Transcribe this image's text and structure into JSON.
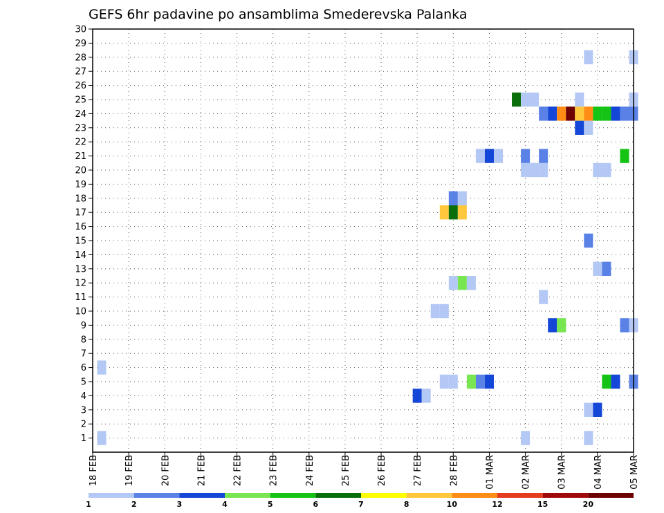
{
  "chart_data": {
    "type": "heatmap",
    "title": "GEFS 6hr padavine po ansamblima Smederevska Palanka",
    "xlabel": "",
    "ylabel": "",
    "x_ticks": [
      "18 FEB",
      "19 FEB",
      "20 FEB",
      "21 FEB",
      "22 FEB",
      "23 FEB",
      "24 FEB",
      "25 FEB",
      "26 FEB",
      "27 FEB",
      "28 FEB",
      "01 MAR",
      "02 MAR",
      "03 MAR",
      "04 MAR",
      "05 MAR"
    ],
    "x_range": [
      "18 FEB 00Z",
      "05 MAR 00Z"
    ],
    "y_ticks": [
      1,
      2,
      3,
      4,
      5,
      6,
      7,
      8,
      9,
      10,
      11,
      12,
      13,
      14,
      15,
      16,
      17,
      18,
      19,
      20,
      21,
      22,
      23,
      24,
      25,
      26,
      27,
      28,
      29,
      30
    ],
    "y_range": [
      0,
      30
    ],
    "grid": true,
    "colorbar": {
      "labels": [
        "1",
        "2",
        "3",
        "4",
        "5",
        "6",
        "7",
        "8",
        "10",
        "12",
        "15",
        "20"
      ],
      "colors": [
        "#b4c8f5",
        "#5a82e6",
        "#1446d7",
        "#78e650",
        "#14c314",
        "#0a6e0a",
        "#ffff00",
        "#ffc83c",
        "#ff8c14",
        "#e63c1e",
        "#a00a0a",
        "#6e0000"
      ]
    },
    "cells": [
      {
        "member": 1,
        "time": "18 FEB 06Z",
        "level": 1
      },
      {
        "member": 1,
        "time": "02 MAR 00Z",
        "level": 1
      },
      {
        "member": 1,
        "time": "03 MAR 18Z",
        "level": 1
      },
      {
        "member": 3,
        "time": "03 MAR 18Z",
        "level": 1
      },
      {
        "member": 3,
        "time": "04 MAR 00Z",
        "level": 3
      },
      {
        "member": 4,
        "time": "27 FEB 00Z",
        "level": 3
      },
      {
        "member": 4,
        "time": "27 FEB 06Z",
        "level": 1
      },
      {
        "member": 5,
        "time": "27 FEB 18Z",
        "level": 1
      },
      {
        "member": 5,
        "time": "28 FEB 00Z",
        "level": 1
      },
      {
        "member": 5,
        "time": "28 FEB 12Z",
        "level": 4
      },
      {
        "member": 5,
        "time": "28 FEB 18Z",
        "level": 2
      },
      {
        "member": 5,
        "time": "01 MAR 00Z",
        "level": 3
      },
      {
        "member": 5,
        "time": "04 MAR 06Z",
        "level": 5
      },
      {
        "member": 5,
        "time": "04 MAR 12Z",
        "level": 3
      },
      {
        "member": 5,
        "time": "05 MAR 00Z",
        "level": 2
      },
      {
        "member": 6,
        "time": "18 FEB 06Z",
        "level": 1
      },
      {
        "member": 9,
        "time": "02 MAR 18Z",
        "level": 3
      },
      {
        "member": 9,
        "time": "03 MAR 00Z",
        "level": 4
      },
      {
        "member": 9,
        "time": "04 MAR 18Z",
        "level": 2
      },
      {
        "member": 9,
        "time": "05 MAR 00Z",
        "level": 1
      },
      {
        "member": 10,
        "time": "27 FEB 12Z",
        "level": 1
      },
      {
        "member": 10,
        "time": "27 FEB 18Z",
        "level": 1
      },
      {
        "member": 11,
        "time": "02 MAR 12Z",
        "level": 1
      },
      {
        "member": 12,
        "time": "28 FEB 00Z",
        "level": 1
      },
      {
        "member": 12,
        "time": "28 FEB 06Z",
        "level": 4
      },
      {
        "member": 12,
        "time": "28 FEB 12Z",
        "level": 1
      },
      {
        "member": 13,
        "time": "04 MAR 00Z",
        "level": 1
      },
      {
        "member": 13,
        "time": "04 MAR 06Z",
        "level": 2
      },
      {
        "member": 15,
        "time": "03 MAR 18Z",
        "level": 2
      },
      {
        "member": 17,
        "time": "27 FEB 18Z",
        "level": 8
      },
      {
        "member": 17,
        "time": "28 FEB 00Z",
        "level": 6
      },
      {
        "member": 17,
        "time": "28 FEB 06Z",
        "level": 8
      },
      {
        "member": 18,
        "time": "28 FEB 00Z",
        "level": 2
      },
      {
        "member": 18,
        "time": "28 FEB 06Z",
        "level": 1
      },
      {
        "member": 20,
        "time": "02 MAR 00Z",
        "level": 1
      },
      {
        "member": 20,
        "time": "02 MAR 06Z",
        "level": 1
      },
      {
        "member": 20,
        "time": "02 MAR 12Z",
        "level": 1
      },
      {
        "member": 20,
        "time": "04 MAR 00Z",
        "level": 1
      },
      {
        "member": 20,
        "time": "04 MAR 06Z",
        "level": 1
      },
      {
        "member": 21,
        "time": "28 FEB 18Z",
        "level": 1
      },
      {
        "member": 21,
        "time": "01 MAR 00Z",
        "level": 3
      },
      {
        "member": 21,
        "time": "01 MAR 06Z",
        "level": 1
      },
      {
        "member": 21,
        "time": "02 MAR 00Z",
        "level": 2
      },
      {
        "member": 21,
        "time": "02 MAR 12Z",
        "level": 2
      },
      {
        "member": 21,
        "time": "04 MAR 18Z",
        "level": 5
      },
      {
        "member": 23,
        "time": "03 MAR 12Z",
        "level": 3
      },
      {
        "member": 23,
        "time": "03 MAR 18Z",
        "level": 1
      },
      {
        "member": 24,
        "time": "02 MAR 12Z",
        "level": 2
      },
      {
        "member": 24,
        "time": "02 MAR 18Z",
        "level": 3
      },
      {
        "member": 24,
        "time": "03 MAR 00Z",
        "level": 9
      },
      {
        "member": 24,
        "time": "03 MAR 06Z",
        "level": 12
      },
      {
        "member": 24,
        "time": "03 MAR 12Z",
        "level": 8
      },
      {
        "member": 24,
        "time": "03 MAR 18Z",
        "level": 9
      },
      {
        "member": 24,
        "time": "04 MAR 00Z",
        "level": 5
      },
      {
        "member": 24,
        "time": "04 MAR 06Z",
        "level": 5
      },
      {
        "member": 24,
        "time": "04 MAR 12Z",
        "level": 3
      },
      {
        "member": 24,
        "time": "04 MAR 18Z",
        "level": 2
      },
      {
        "member": 24,
        "time": "05 MAR 00Z",
        "level": 2
      },
      {
        "member": 25,
        "time": "01 MAR 18Z",
        "level": 6
      },
      {
        "member": 25,
        "time": "02 MAR 00Z",
        "level": 1
      },
      {
        "member": 25,
        "time": "02 MAR 06Z",
        "level": 1
      },
      {
        "member": 25,
        "time": "03 MAR 12Z",
        "level": 1
      },
      {
        "member": 25,
        "time": "05 MAR 00Z",
        "level": 1
      },
      {
        "member": 28,
        "time": "03 MAR 18Z",
        "level": 1
      },
      {
        "member": 28,
        "time": "05 MAR 00Z",
        "level": 1
      }
    ]
  }
}
